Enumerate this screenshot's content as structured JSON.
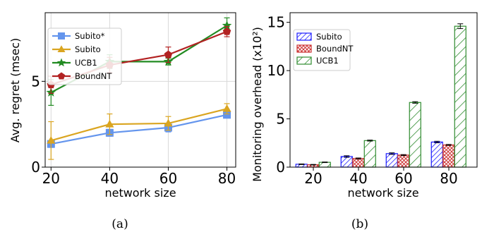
{
  "colors": {
    "subito_star": "#6495ED",
    "subito": "#DAA520",
    "ucb1": "#228B22",
    "boundnt": "#B22222",
    "bar_subito": "#1a1aff",
    "bar_boundnt": "#cc3333",
    "bar_ucb1": "#2e8b2e"
  },
  "chart_data": [
    {
      "type": "line",
      "caption": "(a)",
      "xlabel": "network size",
      "ylabel": "Avg. regret (msec)",
      "x": [
        20,
        40,
        60,
        80
      ],
      "xticks": [
        "20",
        "40",
        "60",
        "80"
      ],
      "yticks": [
        "0",
        "5"
      ],
      "xlim": [
        18,
        83
      ],
      "ylim": [
        0,
        9
      ],
      "grid": true,
      "legend": "top-left",
      "series": [
        {
          "name": "Subito*",
          "marker": "square",
          "color_key": "subito_star",
          "values": [
            1.35,
            2.0,
            2.3,
            3.05
          ],
          "err": [
            0.2,
            0.2,
            0.25,
            0.15
          ]
        },
        {
          "name": "Subito",
          "marker": "triangle",
          "color_key": "subito",
          "values": [
            1.55,
            2.5,
            2.55,
            3.4
          ],
          "err": [
            1.1,
            0.6,
            0.4,
            0.3
          ]
        },
        {
          "name": "UCB1",
          "marker": "star",
          "color_key": "ucb1",
          "values": [
            4.35,
            6.15,
            6.15,
            8.25
          ],
          "err": [
            0.75,
            0.4,
            0.2,
            0.45
          ]
        },
        {
          "name": "BoundNT",
          "marker": "pentagon",
          "color_key": "boundnt",
          "values": [
            4.8,
            5.95,
            6.55,
            7.9
          ],
          "err": [
            0.5,
            0.45,
            0.45,
            0.3
          ]
        }
      ]
    },
    {
      "type": "bar",
      "caption": "(b)",
      "xlabel": "network size",
      "ylabel": "Monitoring overhead (x10²)",
      "categories": [
        "20",
        "40",
        "60",
        "80"
      ],
      "yticks": [
        "0",
        "5",
        "10",
        "15"
      ],
      "ylim": [
        0,
        16
      ],
      "grid": false,
      "legend": "top-left",
      "series": [
        {
          "name": "Subito",
          "color_key": "bar_subito",
          "hatch": "diagonal",
          "values": [
            0.3,
            1.1,
            1.4,
            2.6
          ],
          "err": [
            0.03,
            0.08,
            0.08,
            0.08
          ]
        },
        {
          "name": "BoundNT",
          "color_key": "bar_boundnt",
          "hatch": "cross",
          "values": [
            0.25,
            0.9,
            1.25,
            2.3
          ],
          "err": [
            0.03,
            0.05,
            0.05,
            0.05
          ]
        },
        {
          "name": "UCB1",
          "color_key": "bar_ucb1",
          "hatch": "diagonal-wide",
          "values": [
            0.5,
            2.75,
            6.7,
            14.6
          ],
          "err": [
            0.03,
            0.05,
            0.08,
            0.25
          ]
        }
      ]
    }
  ]
}
